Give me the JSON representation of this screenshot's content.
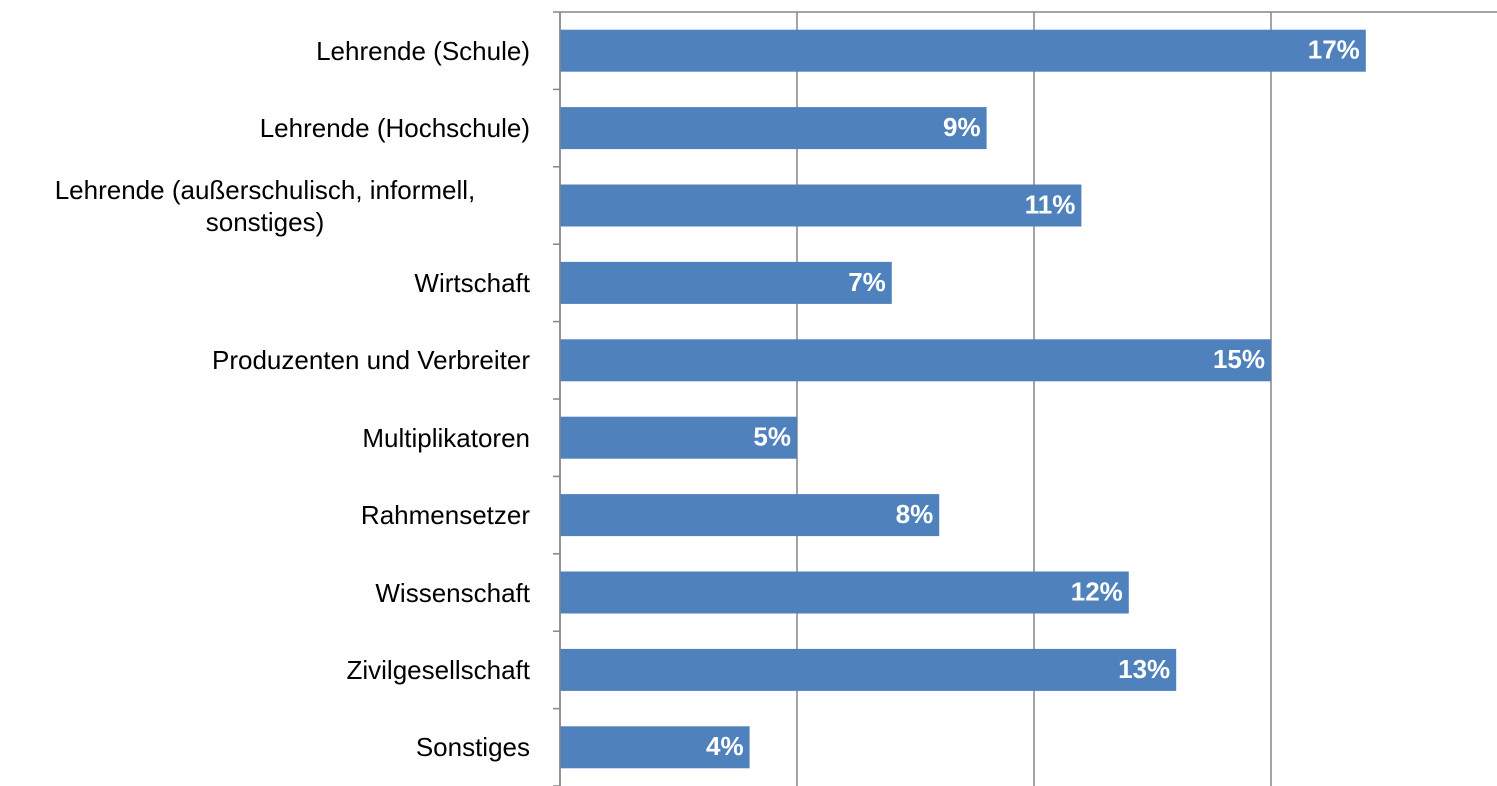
{
  "chart_data": {
    "type": "bar",
    "orientation": "horizontal",
    "categories": [
      "Lehrende (Schule)",
      "Lehrende (Hochschule)",
      "Lehrende (außerschulisch, informell, sonstiges)",
      "Wirtschaft",
      "Produzenten und Verbreiter",
      "Multiplikatoren",
      "Rahmensetzer",
      "Wissenschaft",
      "Zivilgesellschaft",
      "Sonstiges"
    ],
    "values": [
      17,
      9,
      11,
      7,
      15,
      5,
      8,
      12,
      13,
      4
    ],
    "value_labels": [
      "17%",
      "9%",
      "11%",
      "7%",
      "15%",
      "5%",
      "8%",
      "12%",
      "13%",
      "4%"
    ],
    "color": "#4f81bd",
    "xlim": [
      0,
      20
    ],
    "xticks": [
      0,
      5,
      10,
      15
    ],
    "grid": true
  }
}
